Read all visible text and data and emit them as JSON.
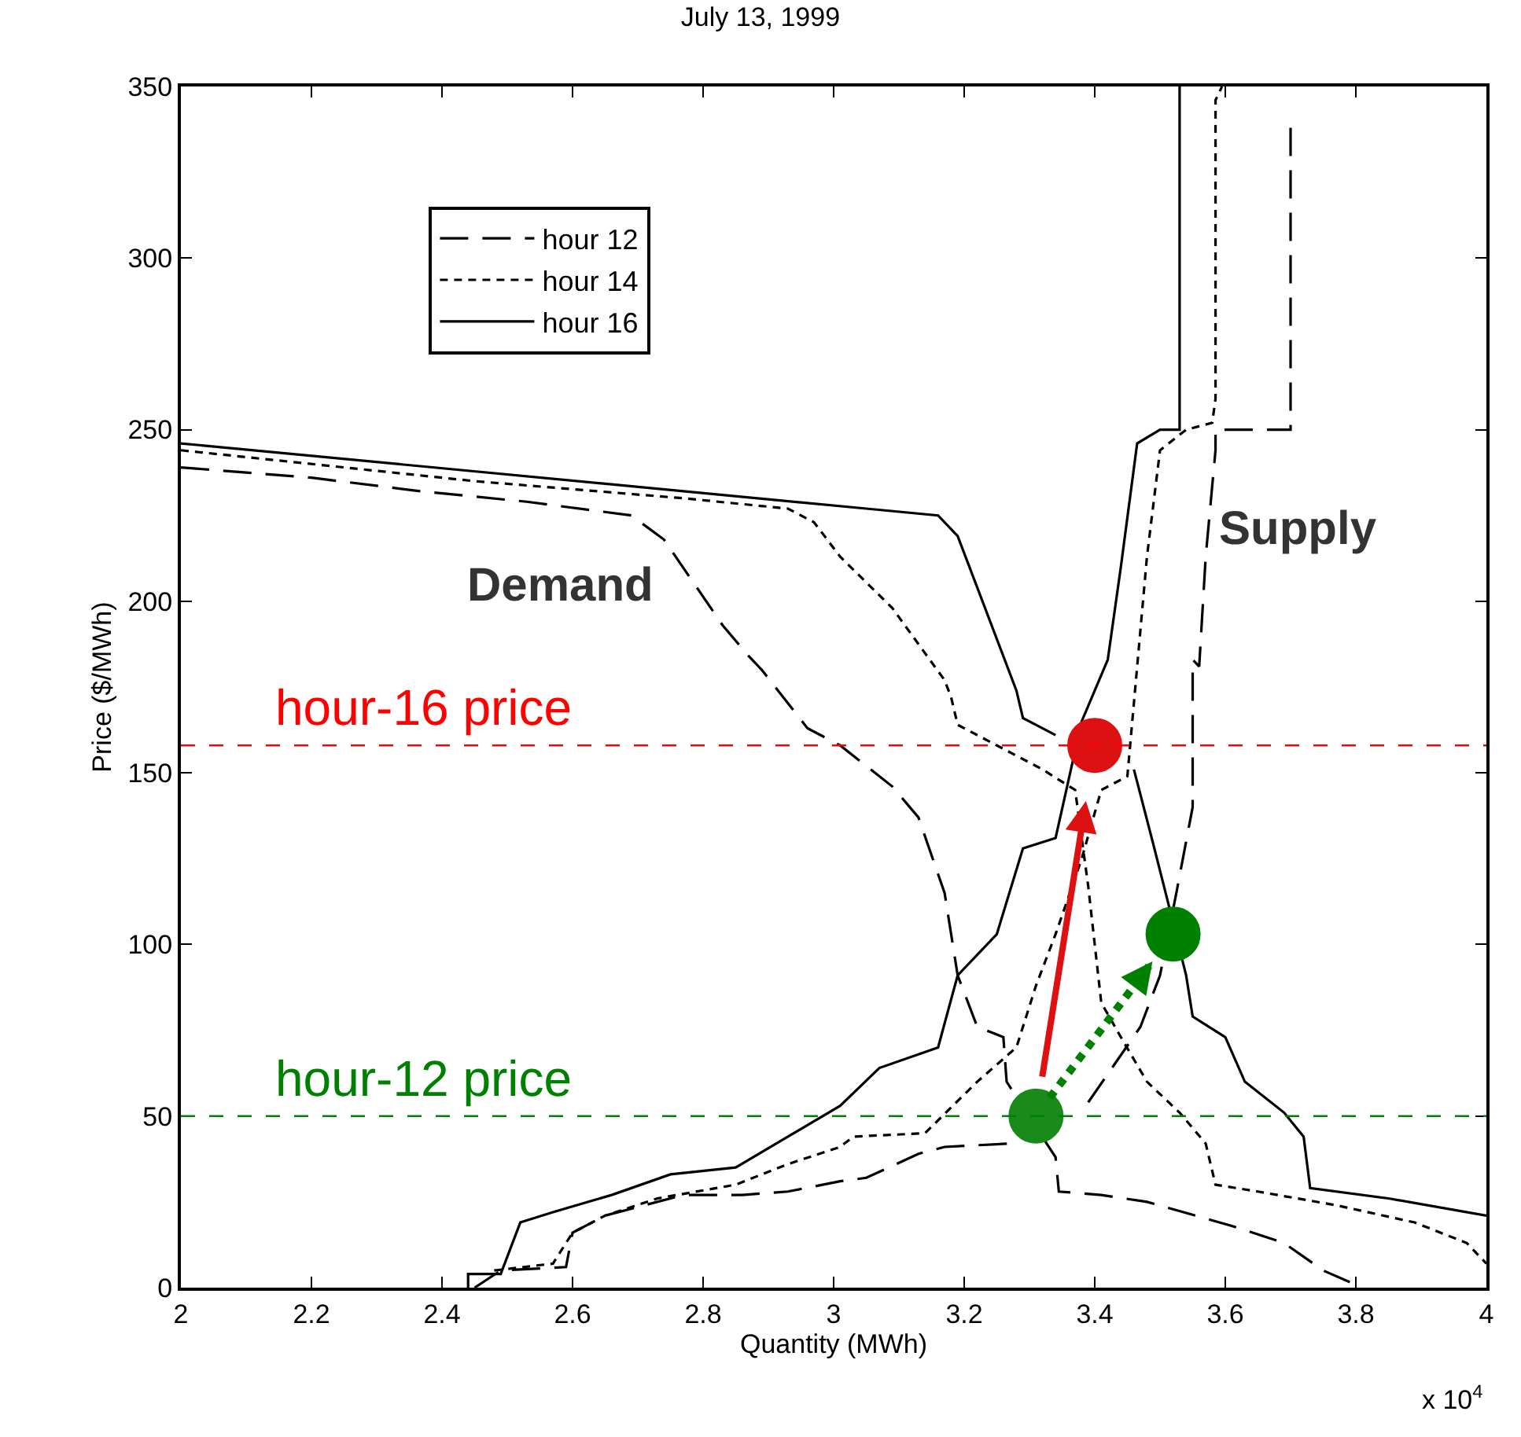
{
  "chart_data": {
    "type": "line",
    "title": "July 13, 1999",
    "xlabel": "Quantity (MWh)",
    "ylabel": "Price ($/MWh)",
    "xlim": [
      2,
      4
    ],
    "xticks": [
      2,
      2.2,
      2.4,
      2.6,
      2.8,
      3,
      3.2,
      3.4,
      3.6,
      3.8,
      4
    ],
    "ylim": [
      0,
      350
    ],
    "yticks": [
      0,
      50,
      100,
      150,
      200,
      250,
      300,
      350
    ],
    "legend": "top left",
    "marker": "none",
    "series": [
      {
        "name": "hour 12",
        "color": "#000000",
        "line_style": "dashed",
        "x": [
          2,
          2.2,
          2.37,
          2.53,
          2.69,
          2.74,
          2.83,
          2.87,
          2.89,
          2.96,
          3.01,
          3.09,
          3.13,
          3.17,
          3.18,
          3.19,
          3.22,
          3.26,
          3.265,
          3.34,
          3.345,
          3.41,
          3.48,
          3.61,
          3.69,
          3.75,
          3.81,
          null,
          2.45,
          2.49,
          2.59,
          2.6,
          2.65,
          2.77,
          2.86,
          2.93,
          3.01,
          3.05,
          3.13,
          3.17,
          3.27,
          3.31,
          3.39,
          3.43,
          3.47,
          3.5,
          3.525,
          3.55,
          3.55,
          3.56,
          3.57,
          3.585,
          3.585,
          3.67,
          3.7,
          3.7
        ],
        "values": [
          239,
          236,
          232,
          229,
          225,
          218,
          193,
          184,
          180,
          163,
          158,
          146,
          137,
          115,
          103,
          91,
          76,
          73,
          60,
          38,
          28,
          27,
          25,
          18,
          13,
          5,
          0,
          null,
          0,
          5,
          6,
          16,
          21,
          27,
          27,
          28,
          31,
          32,
          39,
          41,
          42,
          null,
          54,
          65,
          76,
          91,
          115,
          140,
          183,
          181,
          213,
          244,
          250,
          250,
          250,
          339
        ]
      },
      {
        "name": "hour 14",
        "color": "#000000",
        "line_style": "dotted",
        "x": [
          2,
          2.45,
          2.77,
          2.93,
          2.97,
          3.01,
          3.09,
          3.17,
          3.18,
          3.19,
          3.25,
          3.32,
          3.37,
          3.39,
          3.41,
          3.44,
          3.48,
          3.53,
          3.57,
          3.585,
          3.65,
          3.77,
          3.89,
          3.97,
          4,
          null,
          2.48,
          2.57,
          2.6,
          2.65,
          2.73,
          2.85,
          2.93,
          3.01,
          3.03,
          3.14,
          3.22,
          3.28,
          3.31,
          3.34,
          3.38,
          3.41,
          3.45,
          3.48,
          3.5,
          3.54,
          3.58,
          3.585,
          3.585,
          3.595
        ],
        "values": [
          244,
          235,
          230,
          227,
          223,
          213,
          198,
          177,
          172,
          164,
          158,
          151,
          145,
          117,
          83,
          73,
          60,
          51,
          42,
          30,
          28,
          24,
          19,
          13,
          7,
          null,
          5,
          7,
          16,
          21,
          26,
          30,
          36,
          41,
          44,
          45,
          60,
          70,
          88,
          103,
          125,
          145,
          149,
          213,
          244,
          250,
          252,
          259,
          346,
          350
        ]
      },
      {
        "name": "hour 16",
        "color": "#000000",
        "line_style": "solid",
        "x": [
          2,
          3.05,
          3.16,
          3.19,
          3.28,
          3.29,
          3.34,
          3.4,
          3.46,
          3.49,
          3.51,
          3.54,
          3.55,
          3.6,
          3.63,
          3.69,
          3.72,
          3.73,
          3.85,
          4,
          null,
          2.44,
          2.44,
          2.49,
          2.52,
          2.57,
          2.66,
          2.75,
          2.85,
          2.93,
          3.01,
          3.07,
          3.16,
          3.19,
          3.25,
          3.29,
          3.34,
          3.36,
          3.38,
          3.42,
          3.44,
          3.465,
          3.5,
          3.53,
          3.53
        ],
        "values": [
          246,
          227,
          225,
          219,
          174,
          166,
          161,
          null,
          151,
          129,
          114,
          91,
          79,
          73,
          60,
          51,
          44,
          29,
          26,
          21,
          null,
          0,
          4,
          4,
          19,
          22,
          27,
          33,
          35,
          44,
          53,
          64,
          70,
          91,
          103,
          128,
          131,
          148,
          165,
          183,
          210,
          246,
          250,
          250,
          350
        ]
      },
      {
        "type": "scatter",
        "color": "#1a8a1a",
        "marker": "circle",
        "x": [
          3.31
        ],
        "values": [
          50
        ]
      },
      {
        "type": "scatter",
        "color": "#dd1111",
        "marker": "circle",
        "line_style": "solid",
        "x": [
          3.4
        ],
        "values": [
          158
        ]
      },
      {
        "type": "scatter",
        "color": "#008000",
        "marker": "circle",
        "line_style": "dotted",
        "x": [
          3.52
        ],
        "values": [
          103
        ]
      }
    ],
    "ref_lines": [
      {
        "axis": "y",
        "value": 158,
        "label": "hour-16 price",
        "color": "#ff0000",
        "line_style": "dashed"
      },
      {
        "axis": "y",
        "value": 50,
        "label": "hour-12 price",
        "color": "#008000",
        "line_style": "dashed"
      }
    ],
    "annotations": [
      "Demand",
      "Supply",
      "x 10$^{4}$"
    ]
  }
}
